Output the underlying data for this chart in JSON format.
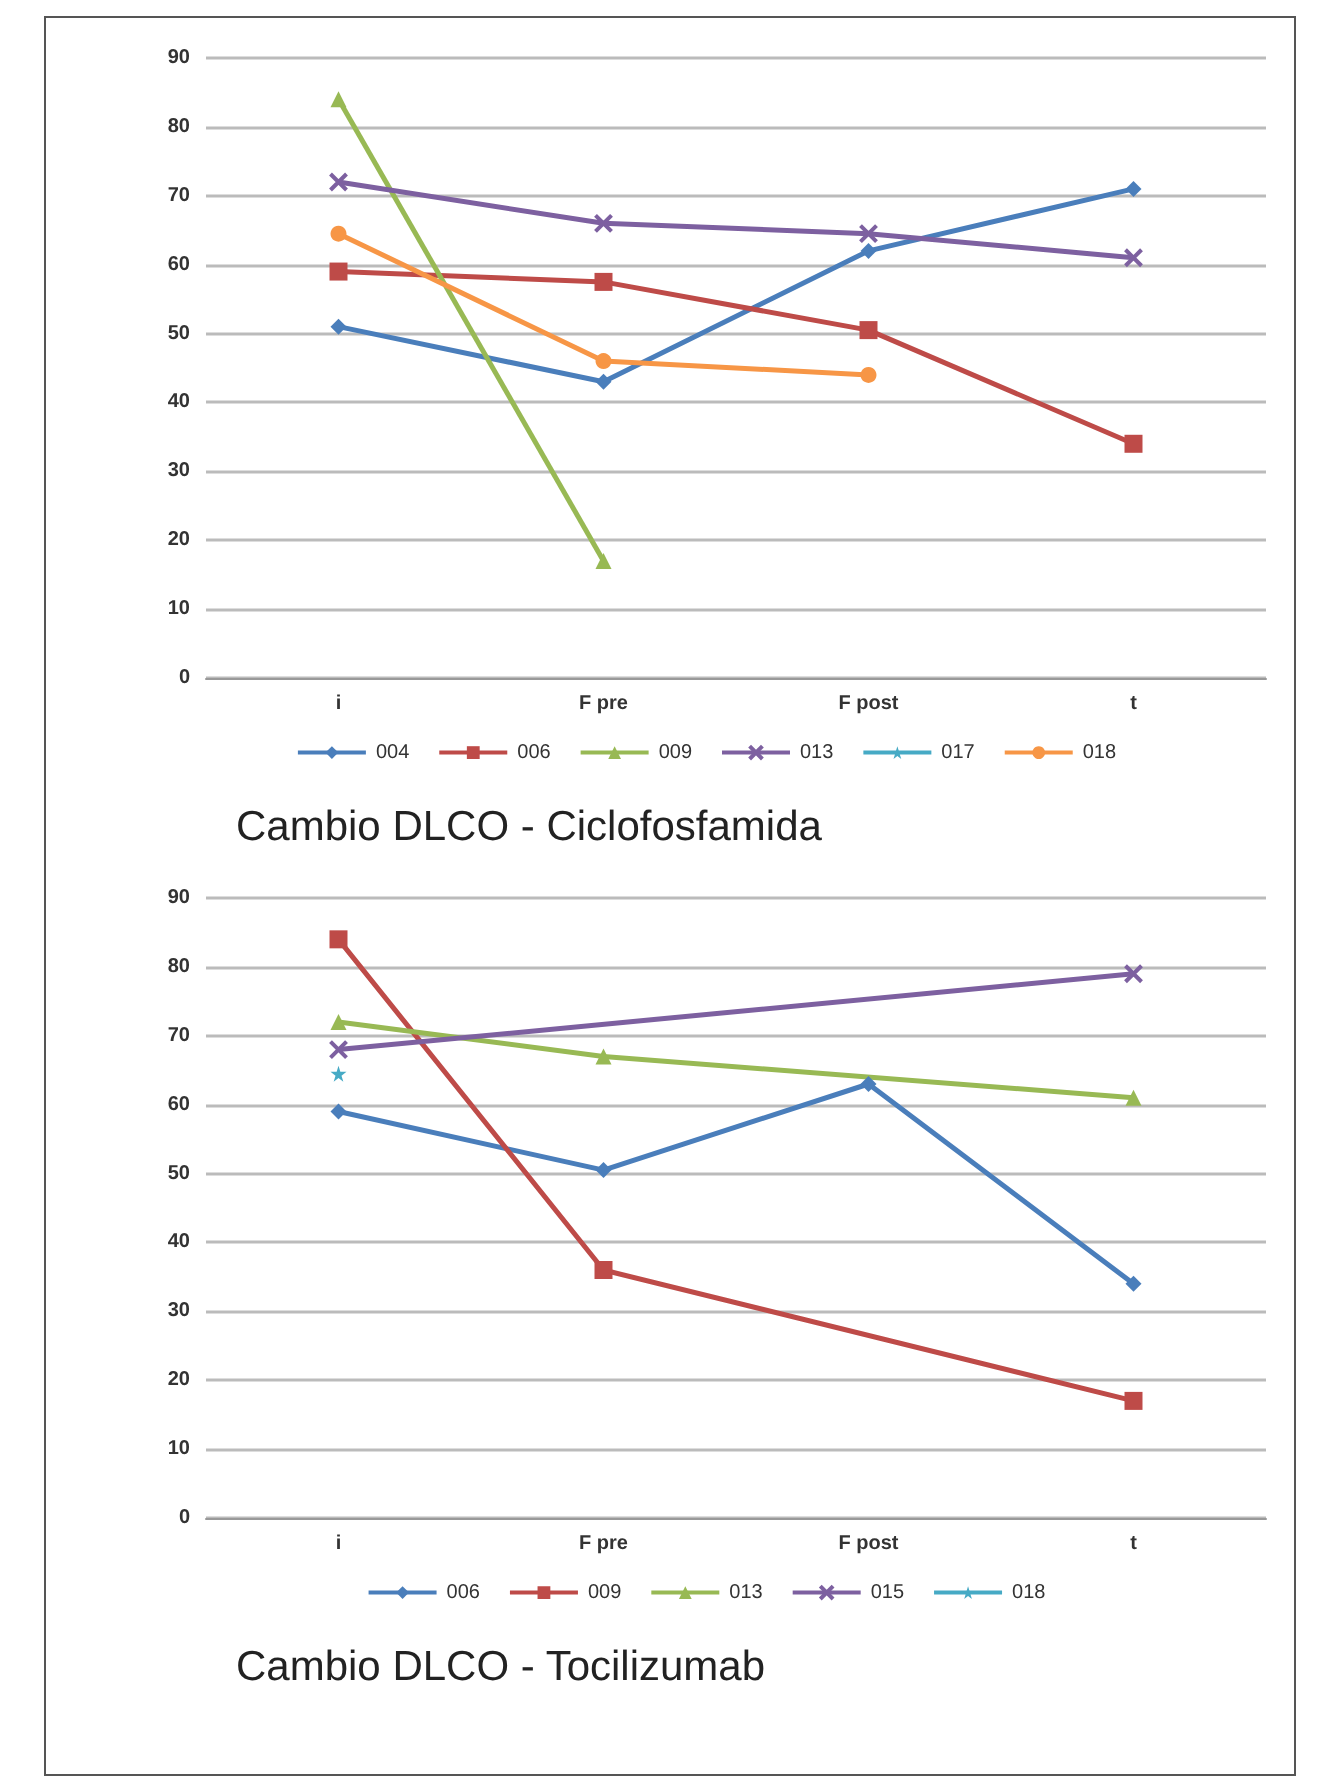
{
  "chart_data": [
    {
      "type": "line",
      "title": "Cambio DLCO - Ciclofosfamida",
      "categories": [
        "i",
        "F pre",
        "F post",
        "t"
      ],
      "ylim": [
        0,
        90
      ],
      "yticks": [
        0,
        10,
        20,
        30,
        40,
        50,
        60,
        70,
        80,
        90
      ],
      "grid": "y",
      "legend": "bottom",
      "series": [
        {
          "name": "004",
          "color": "#4a7ebb",
          "marker": "diamond",
          "values": [
            51,
            43,
            62,
            71
          ]
        },
        {
          "name": "006",
          "color": "#be4b48",
          "marker": "square",
          "values": [
            59,
            57.5,
            50.5,
            34
          ]
        },
        {
          "name": "009",
          "color": "#98b954",
          "marker": "triangle",
          "values": [
            84,
            17,
            null,
            null
          ]
        },
        {
          "name": "013",
          "color": "#7d60a0",
          "marker": "cross",
          "values": [
            72,
            66,
            64.5,
            61
          ]
        },
        {
          "name": "017",
          "color": "#46aac5",
          "marker": "star",
          "values": [
            null,
            null,
            null,
            null
          ]
        },
        {
          "name": "018",
          "color": "#f79646",
          "marker": "circle",
          "values": [
            64.5,
            46,
            44,
            null
          ]
        }
      ]
    },
    {
      "type": "line",
      "title": "Cambio DLCO - Tocilizumab",
      "categories": [
        "i",
        "F pre",
        "F post",
        "t"
      ],
      "ylim": [
        0,
        90
      ],
      "yticks": [
        0,
        10,
        20,
        30,
        40,
        50,
        60,
        70,
        80,
        90
      ],
      "grid": "y",
      "legend": "bottom",
      "series": [
        {
          "name": "006",
          "color": "#4a7ebb",
          "marker": "diamond",
          "values": [
            59,
            50.5,
            63,
            34
          ]
        },
        {
          "name": "009",
          "color": "#be4b48",
          "marker": "square",
          "values": [
            84,
            36,
            null,
            17
          ]
        },
        {
          "name": "013",
          "color": "#98b954",
          "marker": "triangle",
          "values": [
            72,
            67,
            null,
            61
          ]
        },
        {
          "name": "015",
          "color": "#7d60a0",
          "marker": "cross",
          "values": [
            68,
            null,
            null,
            79
          ]
        },
        {
          "name": "018",
          "color": "#46aac5",
          "marker": "star",
          "values": [
            64.5,
            null,
            null,
            null
          ]
        }
      ]
    }
  ]
}
